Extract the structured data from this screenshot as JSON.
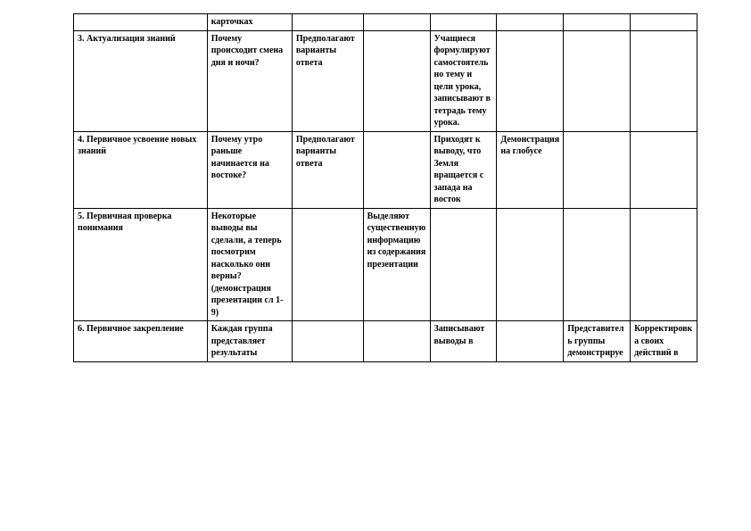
{
  "table": {
    "column_widths_pct": [
      21.4,
      13.6,
      11.4,
      10.7,
      10.7,
      10.7,
      10.7,
      10.7
    ],
    "border_color": "#000000",
    "background_color": "#ffffff",
    "text_color": "#000000",
    "font_size_pt": 10,
    "font_weight": "bold",
    "rows": [
      {
        "cells": [
          "",
          "карточках",
          "",
          "",
          "",
          "",
          "",
          ""
        ]
      },
      {
        "cells": [
          "3. Актуализация знаний",
          "Почему происходит смена дня и ночи?",
          "Предполагают варианты ответа",
          "",
          "Учащиеся формулируют самостоятельно тему и цели урока, записывают в тетрадь тему урока.",
          "",
          "",
          ""
        ]
      },
      {
        "cells": [
          "4. Первичное усвоение новых знаний",
          "Почему утро раньше начинается на востоке?",
          "Предполагают варианты ответа",
          "",
          "Приходят к выводу, что Земля вращается с запада на восток",
          "Демонстрация на глобусе",
          "",
          ""
        ]
      },
      {
        "cells": [
          "5. Первичная проверка понимания",
          "Некоторые выводы вы сделали, а теперь посмотрим насколько они верны? (демонстрация презентации сл 1-9)",
          "",
          "Выделяют существенную информацию из содержания презентации",
          "",
          "",
          "",
          ""
        ]
      },
      {
        "cells": [
          "6. Первичное закрепление",
          "Каждая группа представляет результаты",
          "",
          "",
          "Записывают выводы в",
          "",
          "Представитель группы демонстрируе",
          "Корректировка  своих действий в"
        ]
      }
    ]
  }
}
